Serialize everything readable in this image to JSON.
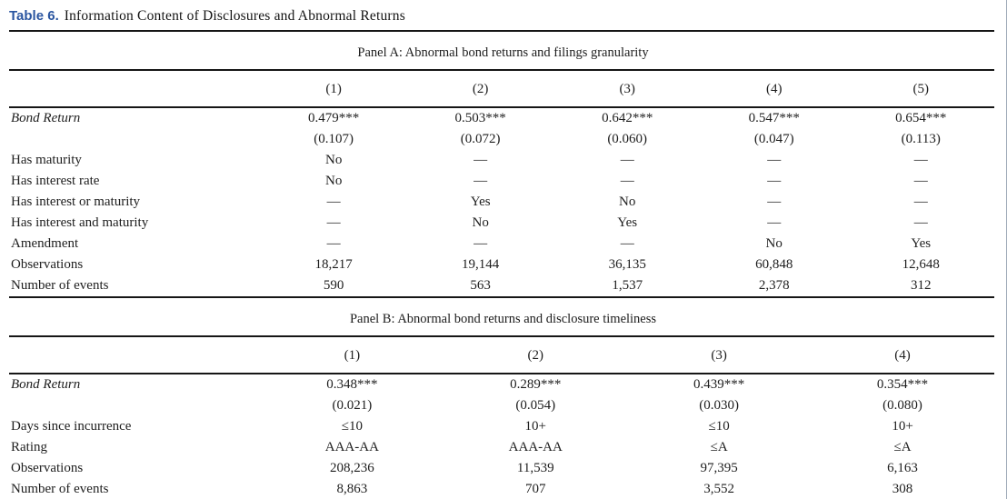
{
  "title": {
    "label": "Table 6.",
    "text": "Information Content of Disclosures and Abnormal Returns"
  },
  "colors": {
    "title_accent": "#2a55a0",
    "body_text": "#1e1e1e",
    "rule": "#161616",
    "frame_border": "#9fabb8"
  },
  "panels": [
    {
      "caption": "Panel A: Abnormal bond returns and filings granularity",
      "column_headers": [
        "(1)",
        "(2)",
        "(3)",
        "(4)",
        "(5)"
      ],
      "rows": [
        {
          "label": "Bond Return",
          "italic": true,
          "values": [
            "0.479***",
            "0.503***",
            "0.642***",
            "0.547***",
            "0.654***"
          ]
        },
        {
          "label": "",
          "italic": false,
          "values": [
            "(0.107)",
            "(0.072)",
            "(0.060)",
            "(0.047)",
            "(0.113)"
          ]
        },
        {
          "label": "Has maturity",
          "italic": false,
          "values": [
            "No",
            "—",
            "—",
            "—",
            "—"
          ]
        },
        {
          "label": "Has interest rate",
          "italic": false,
          "values": [
            "No",
            "—",
            "—",
            "—",
            "—"
          ]
        },
        {
          "label": "Has interest or maturity",
          "italic": false,
          "values": [
            "—",
            "Yes",
            "No",
            "—",
            "—"
          ]
        },
        {
          "label": "Has interest and maturity",
          "italic": false,
          "values": [
            "—",
            "No",
            "Yes",
            "—",
            "—"
          ]
        },
        {
          "label": "Amendment",
          "italic": false,
          "values": [
            "—",
            "—",
            "—",
            "No",
            "Yes"
          ]
        },
        {
          "label": "Observations",
          "italic": false,
          "values": [
            "18,217",
            "19,144",
            "36,135",
            "60,848",
            "12,648"
          ]
        },
        {
          "label": "Number of events",
          "italic": false,
          "values": [
            "590",
            "563",
            "1,537",
            "2,378",
            "312"
          ]
        }
      ]
    },
    {
      "caption": "Panel B: Abnormal bond returns and disclosure timeliness",
      "column_headers": [
        "(1)",
        "(2)",
        "(3)",
        "(4)"
      ],
      "rows": [
        {
          "label": "Bond Return",
          "italic": true,
          "values": [
            "0.348***",
            "0.289***",
            "0.439***",
            "0.354***"
          ]
        },
        {
          "label": "",
          "italic": false,
          "values": [
            "(0.021)",
            "(0.054)",
            "(0.030)",
            "(0.080)"
          ]
        },
        {
          "label": "Days since incurrence",
          "italic": false,
          "values": [
            "≤10",
            "10+",
            "≤10",
            "10+"
          ]
        },
        {
          "label": "Rating",
          "italic": false,
          "values": [
            "AAA-AA",
            "AAA-AA",
            "≤A",
            "≤A"
          ]
        },
        {
          "label": "Observations",
          "italic": false,
          "values": [
            "208,236",
            "11,539",
            "97,395",
            "6,163"
          ]
        },
        {
          "label": "Number of events",
          "italic": false,
          "values": [
            "8,863",
            "707",
            "3,552",
            "308"
          ]
        }
      ]
    }
  ]
}
